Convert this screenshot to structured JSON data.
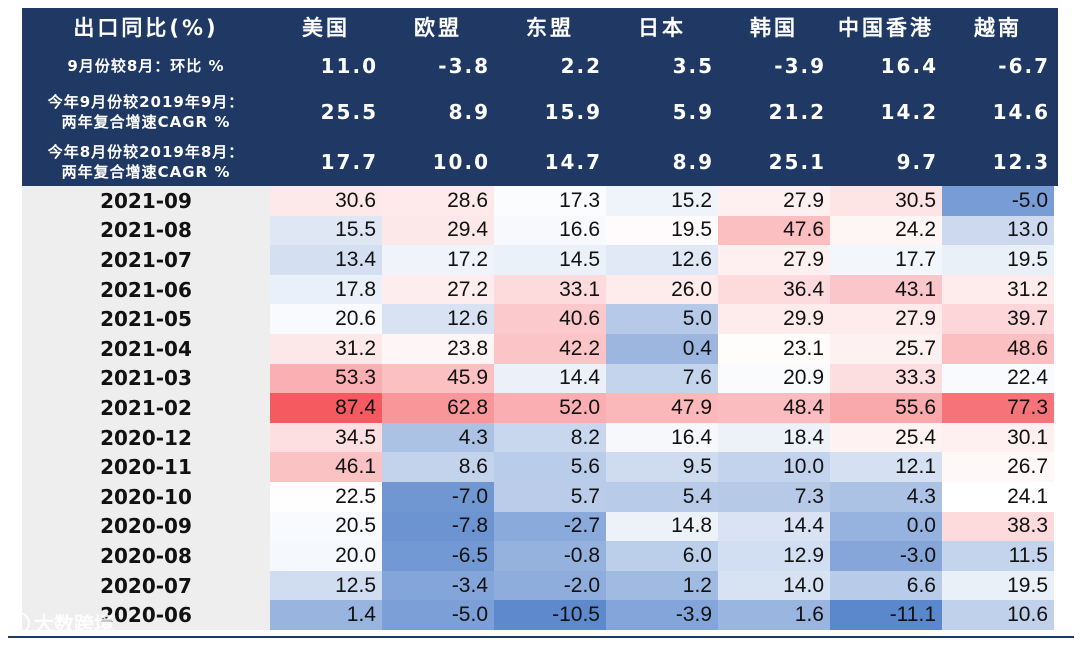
{
  "header": {
    "title": "出口同比(%)",
    "columns": [
      "美国",
      "欧盟",
      "东盟",
      "日本",
      "韩国",
      "中国香港",
      "越南"
    ],
    "summary_rows": [
      {
        "label": [
          "9月份较8月：环比 %"
        ],
        "values": [
          "11.0",
          "-3.8",
          "2.2",
          "3.5",
          "-3.9",
          "16.4",
          "-6.7"
        ]
      },
      {
        "label": [
          "今年9月份较2019年9月：",
          "两年复合增速CAGR %"
        ],
        "values": [
          "25.5",
          "8.9",
          "15.9",
          "5.9",
          "21.2",
          "14.2",
          "14.6"
        ]
      },
      {
        "label": [
          "今年8月份较2019年8月：",
          "两年复合增速CAGR %"
        ],
        "values": [
          "17.7",
          "10.0",
          "14.7",
          "8.9",
          "25.1",
          "9.7",
          "12.3"
        ]
      }
    ]
  },
  "colors": {
    "header_bg": "#1f3864",
    "high": "#f45a60",
    "low": "#5b87cc",
    "mid": "#ffffff"
  },
  "chart_data": {
    "type": "heatmap",
    "columns": [
      "美国",
      "欧盟",
      "东盟",
      "日本",
      "韩国",
      "中国香港",
      "越南"
    ],
    "rows": [
      "2021-09",
      "2021-08",
      "2021-07",
      "2021-06",
      "2021-05",
      "2021-04",
      "2021-03",
      "2021-02",
      "2020-12",
      "2020-11",
      "2020-10",
      "2020-09",
      "2020-08",
      "2020-07",
      "2020-06"
    ],
    "values": [
      [
        "30.6",
        "28.6",
        "17.3",
        "15.2",
        "27.9",
        "30.5",
        "-5.0"
      ],
      [
        "15.5",
        "29.4",
        "16.6",
        "19.5",
        "47.6",
        "24.2",
        "13.0"
      ],
      [
        "13.4",
        "17.2",
        "14.5",
        "12.6",
        "27.9",
        "17.7",
        "19.5"
      ],
      [
        "17.8",
        "27.2",
        "33.1",
        "26.0",
        "36.4",
        "43.1",
        "31.2"
      ],
      [
        "20.6",
        "12.6",
        "40.6",
        "5.0",
        "29.9",
        "27.9",
        "39.7"
      ],
      [
        "31.2",
        "23.8",
        "42.2",
        "0.4",
        "23.1",
        "25.7",
        "48.6"
      ],
      [
        "53.3",
        "45.9",
        "14.4",
        "7.6",
        "20.9",
        "33.3",
        "22.4"
      ],
      [
        "87.4",
        "62.8",
        "52.0",
        "47.9",
        "48.4",
        "55.6",
        "77.3"
      ],
      [
        "34.5",
        "4.3",
        "8.2",
        "16.4",
        "18.4",
        "25.4",
        "30.1"
      ],
      [
        "46.1",
        "8.6",
        "5.6",
        "9.5",
        "10.0",
        "12.1",
        "26.7"
      ],
      [
        "22.5",
        "-7.0",
        "5.7",
        "5.4",
        "7.3",
        "4.3",
        "24.1"
      ],
      [
        "20.5",
        "-7.8",
        "-2.7",
        "14.8",
        "14.4",
        "0.0",
        "38.3"
      ],
      [
        "20.0",
        "-6.5",
        "-0.8",
        "6.0",
        "12.9",
        "-3.0",
        "11.5"
      ],
      [
        "12.5",
        "-3.4",
        "-2.0",
        "1.2",
        "14.0",
        "6.6",
        "19.5"
      ],
      [
        "1.4",
        "-5.0",
        "-10.5",
        "-3.9",
        "1.6",
        "-11.1",
        "10.6"
      ]
    ],
    "column_midpoints": [
      22,
      20,
      18,
      18,
      22,
      20,
      24
    ]
  },
  "watermark": "大数跨境"
}
